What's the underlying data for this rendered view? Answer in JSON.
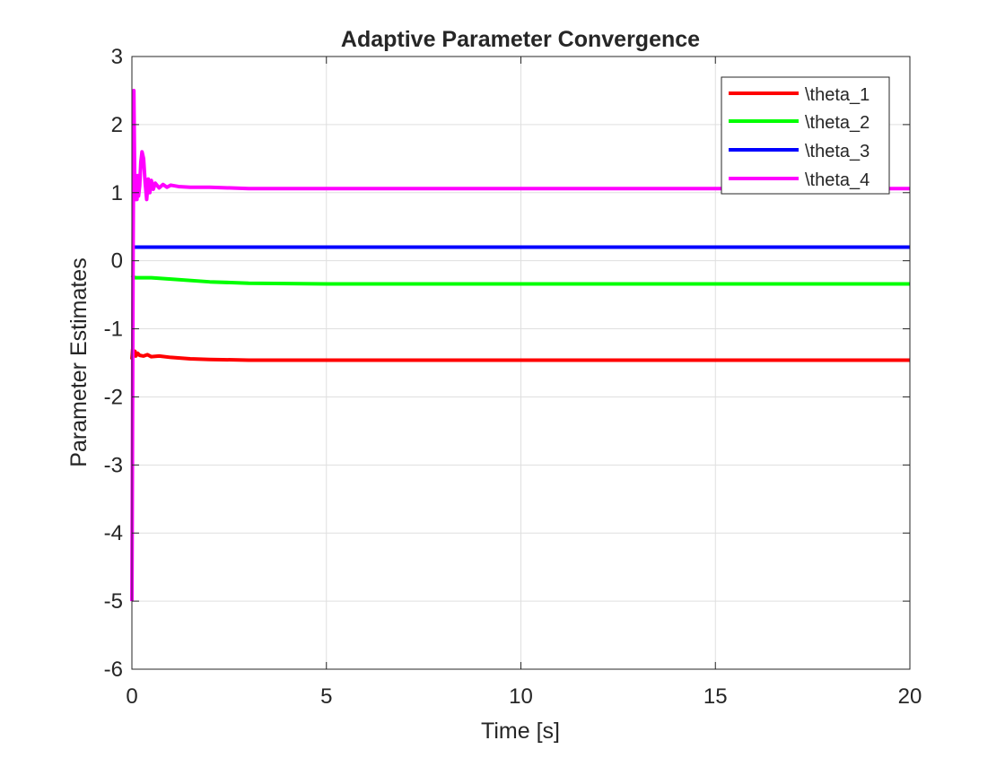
{
  "chart_data": {
    "type": "line",
    "title": "Adaptive Parameter Convergence",
    "xlabel": "Time [s]",
    "ylabel": "Parameter Estimates",
    "xlim": [
      0,
      20
    ],
    "ylim": [
      -6,
      3
    ],
    "xticks": [
      0,
      5,
      10,
      15,
      20
    ],
    "yticks": [
      -6,
      -5,
      -4,
      -3,
      -2,
      -1,
      0,
      1,
      2,
      3
    ],
    "xtick_labels": [
      "0",
      "5",
      "10",
      "15",
      "20"
    ],
    "ytick_labels": [
      "-6",
      "-5",
      "-4",
      "-3",
      "-2",
      "-1",
      "0",
      "1",
      "2",
      "3"
    ],
    "grid": true,
    "legend_position": "top-right",
    "series": [
      {
        "name": "\\theta_1",
        "color": "#ff0000",
        "x": [
          0,
          0.02,
          0.05,
          0.08,
          0.1,
          0.15,
          0.2,
          0.3,
          0.4,
          0.5,
          0.7,
          1,
          1.5,
          2,
          3,
          5,
          10,
          15,
          20
        ],
        "y": [
          -1.45,
          -1.3,
          -1.38,
          -1.33,
          -1.4,
          -1.36,
          -1.39,
          -1.4,
          -1.38,
          -1.41,
          -1.4,
          -1.42,
          -1.44,
          -1.45,
          -1.46,
          -1.46,
          -1.46,
          -1.46,
          -1.46
        ]
      },
      {
        "name": "\\theta_2",
        "color": "#00ff00",
        "x": [
          0,
          0.02,
          0.1,
          0.5,
          1,
          2,
          3,
          5,
          10,
          15,
          20
        ],
        "y": [
          -0.25,
          -0.24,
          -0.25,
          -0.25,
          -0.27,
          -0.31,
          -0.33,
          -0.34,
          -0.34,
          -0.34,
          -0.34
        ]
      },
      {
        "name": "\\theta_3",
        "color": "#0000ff",
        "x": [
          0,
          0.02,
          1,
          5,
          10,
          15,
          20
        ],
        "y": [
          0.2,
          0.2,
          0.2,
          0.2,
          0.2,
          0.2,
          0.2
        ]
      },
      {
        "name": "\\theta_4",
        "color": "#ff00ff",
        "x": [
          0,
          0.01,
          0.03,
          0.05,
          0.07,
          0.09,
          0.11,
          0.13,
          0.15,
          0.17,
          0.2,
          0.23,
          0.26,
          0.3,
          0.34,
          0.38,
          0.42,
          0.46,
          0.5,
          0.55,
          0.6,
          0.7,
          0.8,
          0.9,
          1.0,
          1.2,
          1.5,
          2,
          3,
          5,
          10,
          15,
          20
        ],
        "y": [
          -5.0,
          -3.5,
          0.0,
          2.5,
          1.3,
          0.9,
          1.2,
          0.9,
          1.25,
          0.95,
          1.1,
          1.45,
          1.6,
          1.5,
          1.15,
          0.9,
          1.2,
          1.0,
          1.18,
          1.05,
          1.14,
          1.07,
          1.12,
          1.08,
          1.11,
          1.09,
          1.08,
          1.08,
          1.06,
          1.06,
          1.06,
          1.06,
          1.06
        ]
      }
    ]
  }
}
